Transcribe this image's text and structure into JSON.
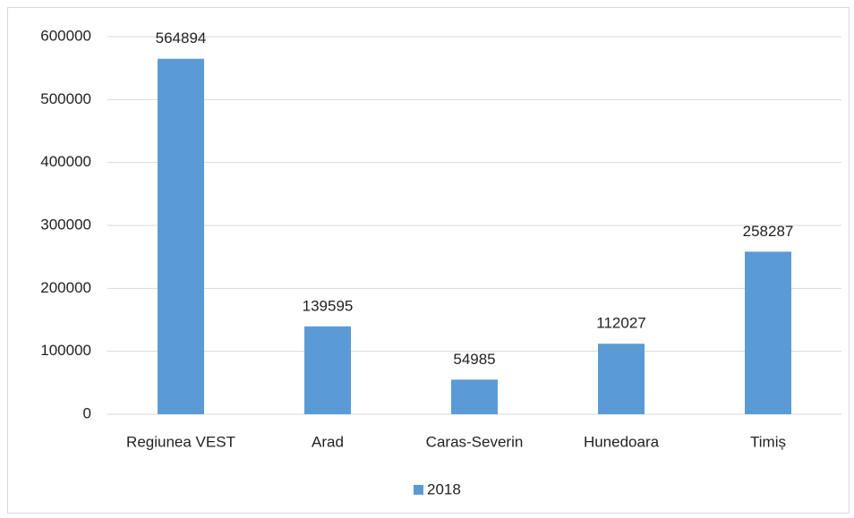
{
  "chart_data": {
    "type": "bar",
    "categories": [
      "Regiunea VEST",
      "Arad",
      "Caras-Severin",
      "Hunedoara",
      "Timiș"
    ],
    "series": [
      {
        "name": "2018",
        "color": "#5b9bd5",
        "values": [
          564894,
          139595,
          54985,
          112027,
          258287
        ]
      }
    ],
    "ylim": [
      0,
      600000
    ],
    "yticks": [
      0,
      100000,
      200000,
      300000,
      400000,
      500000,
      600000
    ],
    "grid": true,
    "data_labels": true,
    "legend": "bottom"
  }
}
